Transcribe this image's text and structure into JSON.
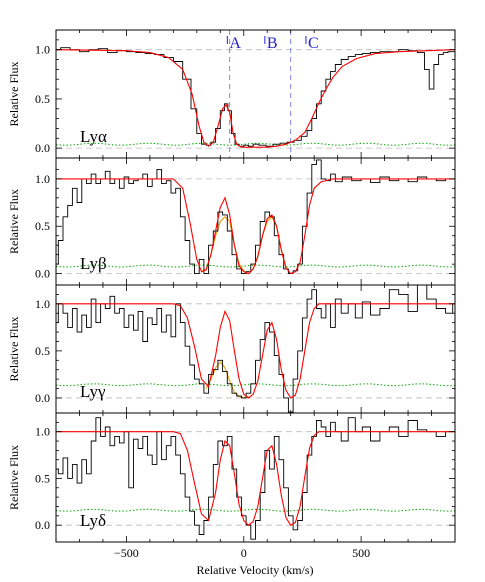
{
  "chart_data": {
    "type": "line",
    "x_axis": {
      "label": "Relative Velocity (km/s)",
      "range": [
        -800,
        900
      ],
      "ticks": [
        -500,
        0,
        500
      ],
      "tick_labels": [
        "−500",
        "0",
        "500"
      ]
    },
    "components": [
      {
        "label": "A",
        "velocity": -70
      },
      {
        "label": "B",
        "velocity": 90
      },
      {
        "label": "C",
        "velocity": 265
      }
    ],
    "dashed_verticals": [
      -60,
      200
    ],
    "colors": {
      "data": "#000000",
      "model": "#ff0000",
      "error": "#00aa00",
      "grid": "#bbbbbb",
      "component": "#2222cc",
      "alt_model": "#e6a817"
    },
    "panels": [
      {
        "label": "Lyα",
        "ylabel": "Relative Flux",
        "y_range": [
          -0.1,
          1.2
        ],
        "y_ticks": [
          0.0,
          0.5,
          1.0
        ],
        "y_tick_labels": [
          "0.0",
          "0.5",
          "1.0"
        ],
        "data_x": [
          -800,
          -760,
          -720,
          -680,
          -640,
          -600,
          -560,
          -520,
          -480,
          -440,
          -400,
          -360,
          -320,
          -280,
          -240,
          -210,
          -190,
          -170,
          -150,
          -130,
          -110,
          -90,
          -75,
          -60,
          -45,
          -30,
          -10,
          10,
          30,
          50,
          80,
          110,
          140,
          170,
          200,
          230,
          260,
          280,
          300,
          320,
          340,
          360,
          380,
          400,
          430,
          460,
          490,
          520,
          560,
          600,
          640,
          680,
          720,
          760,
          780,
          800,
          820,
          840,
          860,
          880,
          900
        ],
        "data_y": [
          1.0,
          1.02,
          1.0,
          0.98,
          1.0,
          1.01,
          0.97,
          0.99,
          0.98,
          0.97,
          0.96,
          0.95,
          0.92,
          0.88,
          0.7,
          0.4,
          0.15,
          0.04,
          0.03,
          0.06,
          0.2,
          0.38,
          0.45,
          0.38,
          0.15,
          0.04,
          0.02,
          0.03,
          0.02,
          0.04,
          0.03,
          0.02,
          0.04,
          0.05,
          0.06,
          0.08,
          0.12,
          0.18,
          0.3,
          0.45,
          0.58,
          0.7,
          0.78,
          0.85,
          0.9,
          0.93,
          0.95,
          0.96,
          0.97,
          0.98,
          0.98,
          1.0,
          0.99,
          0.97,
          0.8,
          0.6,
          0.85,
          0.95,
          0.97,
          0.98,
          0.98
        ],
        "model_x": [
          -800,
          -500,
          -400,
          -320,
          -260,
          -220,
          -190,
          -170,
          -150,
          -130,
          -110,
          -90,
          -75,
          -60,
          -45,
          -30,
          -10,
          20,
          60,
          100,
          140,
          180,
          220,
          260,
          290,
          320,
          350,
          380,
          420,
          480,
          560,
          660,
          780,
          900
        ],
        "model_y": [
          1.0,
          0.99,
          0.97,
          0.92,
          0.8,
          0.55,
          0.22,
          0.06,
          0.02,
          0.06,
          0.22,
          0.4,
          0.44,
          0.36,
          0.15,
          0.04,
          0.01,
          0.01,
          0.01,
          0.01,
          0.02,
          0.04,
          0.08,
          0.16,
          0.3,
          0.46,
          0.6,
          0.72,
          0.83,
          0.91,
          0.96,
          0.98,
          0.99,
          1.0
        ],
        "error_y": 0.04
      },
      {
        "label": "Lyβ",
        "ylabel": "Relative Flux",
        "y_range": [
          -0.12,
          1.22
        ],
        "y_ticks": [
          0.0,
          0.5,
          1.0
        ],
        "y_tick_labels": [
          "0.0",
          "0.5",
          "1.0"
        ],
        "data_x": [
          -800,
          -780,
          -760,
          -740,
          -720,
          -700,
          -680,
          -660,
          -640,
          -620,
          -600,
          -580,
          -560,
          -540,
          -520,
          -500,
          -480,
          -460,
          -440,
          -420,
          -400,
          -380,
          -360,
          -340,
          -320,
          -300,
          -280,
          -260,
          -240,
          -220,
          -200,
          -180,
          -160,
          -140,
          -120,
          -100,
          -80,
          -60,
          -40,
          -20,
          0,
          20,
          40,
          60,
          80,
          100,
          120,
          140,
          160,
          180,
          200,
          220,
          240,
          260,
          280,
          300,
          320,
          340,
          360,
          380,
          400,
          440,
          480,
          520,
          560,
          600,
          640,
          680,
          720,
          760,
          800,
          840,
          880,
          900
        ],
        "data_y": [
          0.1,
          0.35,
          0.6,
          0.72,
          0.9,
          0.75,
          1.0,
          0.95,
          1.05,
          0.95,
          1.0,
          1.08,
          0.95,
          1.0,
          0.9,
          1.02,
          0.95,
          0.98,
          1.0,
          1.05,
          0.92,
          1.0,
          1.1,
          0.95,
          0.98,
          0.85,
          0.9,
          0.6,
          0.35,
          0.1,
          0.0,
          0.15,
          0.0,
          0.3,
          0.45,
          0.65,
          0.62,
          0.45,
          0.2,
          0.05,
          0.0,
          0.02,
          0.1,
          0.3,
          0.55,
          0.65,
          0.6,
          0.4,
          0.2,
          0.05,
          0.0,
          0.03,
          0.1,
          0.5,
          0.85,
          1.15,
          1.2,
          1.0,
          0.98,
          1.05,
          0.97,
          1.02,
          0.98,
          1.0,
          0.96,
          1.02,
          0.98,
          1.0,
          0.97,
          1.02,
          1.0,
          0.98,
          1.0,
          1.0
        ],
        "model_x": [
          -800,
          -300,
          -260,
          -230,
          -200,
          -180,
          -160,
          -140,
          -120,
          -100,
          -80,
          -60,
          -40,
          -20,
          0,
          20,
          40,
          60,
          80,
          100,
          120,
          140,
          160,
          180,
          200,
          220,
          240,
          260,
          280,
          300,
          330,
          380,
          500,
          900
        ],
        "model_y": [
          1.0,
          1.0,
          0.9,
          0.55,
          0.15,
          0.02,
          0.04,
          0.2,
          0.45,
          0.7,
          0.8,
          0.62,
          0.3,
          0.08,
          0.02,
          0.0,
          0.05,
          0.18,
          0.4,
          0.58,
          0.62,
          0.5,
          0.25,
          0.06,
          0.0,
          0.02,
          0.12,
          0.4,
          0.72,
          0.9,
          0.97,
          1.0,
          1.0,
          1.0
        ],
        "alt_model_x": [
          -180,
          -160,
          -140,
          -120,
          -100,
          -80,
          -60,
          -40,
          -20,
          0,
          20,
          40,
          60,
          80,
          100,
          120,
          140,
          160,
          180
        ],
        "alt_model_y": [
          0.02,
          0.05,
          0.2,
          0.4,
          0.55,
          0.6,
          0.55,
          0.3,
          0.1,
          0.03,
          0.0,
          0.05,
          0.18,
          0.4,
          0.55,
          0.6,
          0.5,
          0.25,
          0.06
        ],
        "error_y": 0.08
      },
      {
        "label": "Lyγ",
        "ylabel": "Relative Flux",
        "y_range": [
          -0.16,
          1.2
        ],
        "y_ticks": [
          0.0,
          0.5,
          1.0
        ],
        "y_tick_labels": [
          "0.0",
          "0.5",
          "1.0"
        ],
        "data_x": [
          -800,
          -780,
          -760,
          -740,
          -720,
          -700,
          -680,
          -660,
          -640,
          -620,
          -600,
          -580,
          -560,
          -540,
          -520,
          -500,
          -480,
          -460,
          -440,
          -420,
          -400,
          -380,
          -360,
          -340,
          -320,
          -300,
          -280,
          -260,
          -240,
          -220,
          -200,
          -180,
          -160,
          -140,
          -120,
          -100,
          -80,
          -60,
          -40,
          -20,
          0,
          20,
          40,
          60,
          80,
          100,
          120,
          140,
          160,
          180,
          200,
          220,
          240,
          260,
          280,
          300,
          320,
          340,
          360,
          380,
          400,
          430,
          460,
          490,
          520,
          560,
          600,
          640,
          680,
          720,
          760,
          800,
          840,
          880,
          900
        ],
        "data_y": [
          0.8,
          1.0,
          0.9,
          0.75,
          0.95,
          0.7,
          0.88,
          0.75,
          1.05,
          0.8,
          1.0,
          0.95,
          1.08,
          0.9,
          0.95,
          0.75,
          0.88,
          0.72,
          0.92,
          0.6,
          0.85,
          0.78,
          0.95,
          0.7,
          0.88,
          0.65,
          1.0,
          0.8,
          0.55,
          0.35,
          0.2,
          0.15,
          0.05,
          0.25,
          0.3,
          0.4,
          0.28,
          0.15,
          0.05,
          0.02,
          0.0,
          0.05,
          0.15,
          0.4,
          0.62,
          0.8,
          0.7,
          0.45,
          0.25,
          0.0,
          -0.15,
          0.2,
          0.5,
          0.85,
          1.05,
          1.15,
          0.95,
          0.85,
          1.0,
          0.75,
          1.05,
          0.9,
          1.0,
          0.85,
          1.02,
          0.88,
          0.95,
          1.15,
          1.1,
          0.92,
          1.2,
          1.05,
          0.95,
          0.9,
          1.0
        ],
        "model_x": [
          -800,
          -300,
          -270,
          -240,
          -210,
          -180,
          -150,
          -120,
          -100,
          -80,
          -60,
          -40,
          -20,
          0,
          20,
          40,
          60,
          80,
          100,
          120,
          140,
          160,
          180,
          200,
          220,
          240,
          260,
          280,
          300,
          320,
          340,
          380,
          450,
          900
        ],
        "model_y": [
          1.0,
          1.0,
          0.98,
          0.85,
          0.55,
          0.2,
          0.12,
          0.45,
          0.75,
          0.92,
          0.82,
          0.5,
          0.2,
          0.04,
          0.0,
          0.04,
          0.18,
          0.45,
          0.72,
          0.8,
          0.62,
          0.3,
          0.08,
          0.0,
          0.03,
          0.2,
          0.5,
          0.8,
          0.95,
          1.0,
          1.0,
          1.0,
          1.0,
          1.0
        ],
        "alt_model_x": [
          -160,
          -140,
          -120,
          -100,
          -80,
          -60,
          -40,
          -20,
          0,
          20
        ],
        "alt_model_y": [
          0.1,
          0.2,
          0.32,
          0.38,
          0.32,
          0.18,
          0.06,
          0.02,
          0.0,
          0.02
        ],
        "error_y": 0.14
      },
      {
        "label": "Lyδ",
        "ylabel": "Relative Flux",
        "y_range": [
          -0.18,
          1.2
        ],
        "y_ticks": [
          0.0,
          0.5,
          1.0
        ],
        "y_tick_labels": [
          "0.0",
          "0.5",
          "1.0"
        ],
        "data_x": [
          -800,
          -780,
          -760,
          -740,
          -720,
          -700,
          -680,
          -660,
          -640,
          -620,
          -600,
          -580,
          -560,
          -540,
          -520,
          -500,
          -480,
          -460,
          -440,
          -420,
          -400,
          -380,
          -360,
          -340,
          -320,
          -300,
          -280,
          -260,
          -240,
          -220,
          -200,
          -180,
          -160,
          -140,
          -120,
          -100,
          -80,
          -60,
          -40,
          -20,
          0,
          20,
          40,
          60,
          80,
          100,
          120,
          140,
          160,
          180,
          200,
          220,
          240,
          260,
          280,
          300,
          320,
          340,
          360,
          380,
          400,
          430,
          460,
          490,
          520,
          560,
          600,
          640,
          680,
          720,
          760,
          800,
          840,
          880,
          900
        ],
        "data_y": [
          0.6,
          0.55,
          0.72,
          0.5,
          0.65,
          0.45,
          0.7,
          0.55,
          0.9,
          1.15,
          0.95,
          1.05,
          0.85,
          0.95,
          0.88,
          1.0,
          0.4,
          0.92,
          0.82,
          0.95,
          0.75,
          0.65,
          1.0,
          0.7,
          0.85,
          0.95,
          0.75,
          0.55,
          0.3,
          0.15,
          0.0,
          -0.1,
          0.05,
          0.3,
          0.65,
          0.9,
          0.85,
          0.95,
          0.6,
          0.3,
          0.1,
          0.0,
          -0.15,
          0.05,
          0.35,
          0.8,
          0.6,
          0.95,
          0.7,
          0.4,
          0.1,
          -0.05,
          0.05,
          0.35,
          0.75,
          0.95,
          1.12,
          1.05,
          0.95,
          1.1,
          1.0,
          0.9,
          1.15,
          1.0,
          1.05,
          0.9,
          1.0,
          1.05,
          0.95,
          1.12,
          1.02,
          1.0,
          0.95,
          1.0,
          1.0
        ],
        "model_x": [
          -800,
          -300,
          -270,
          -240,
          -210,
          -180,
          -150,
          -120,
          -100,
          -80,
          -60,
          -40,
          -20,
          0,
          20,
          40,
          60,
          80,
          100,
          120,
          140,
          160,
          180,
          200,
          220,
          240,
          260,
          280,
          300,
          320,
          340,
          380,
          450,
          900
        ],
        "model_y": [
          1.0,
          1.0,
          0.98,
          0.8,
          0.45,
          0.12,
          0.05,
          0.35,
          0.7,
          0.9,
          0.85,
          0.55,
          0.22,
          0.05,
          0.0,
          0.04,
          0.2,
          0.5,
          0.8,
          0.85,
          0.65,
          0.32,
          0.08,
          0.0,
          0.03,
          0.2,
          0.52,
          0.82,
          0.96,
          1.0,
          1.0,
          1.0,
          1.0,
          1.0
        ],
        "error_y": 0.16
      }
    ]
  }
}
